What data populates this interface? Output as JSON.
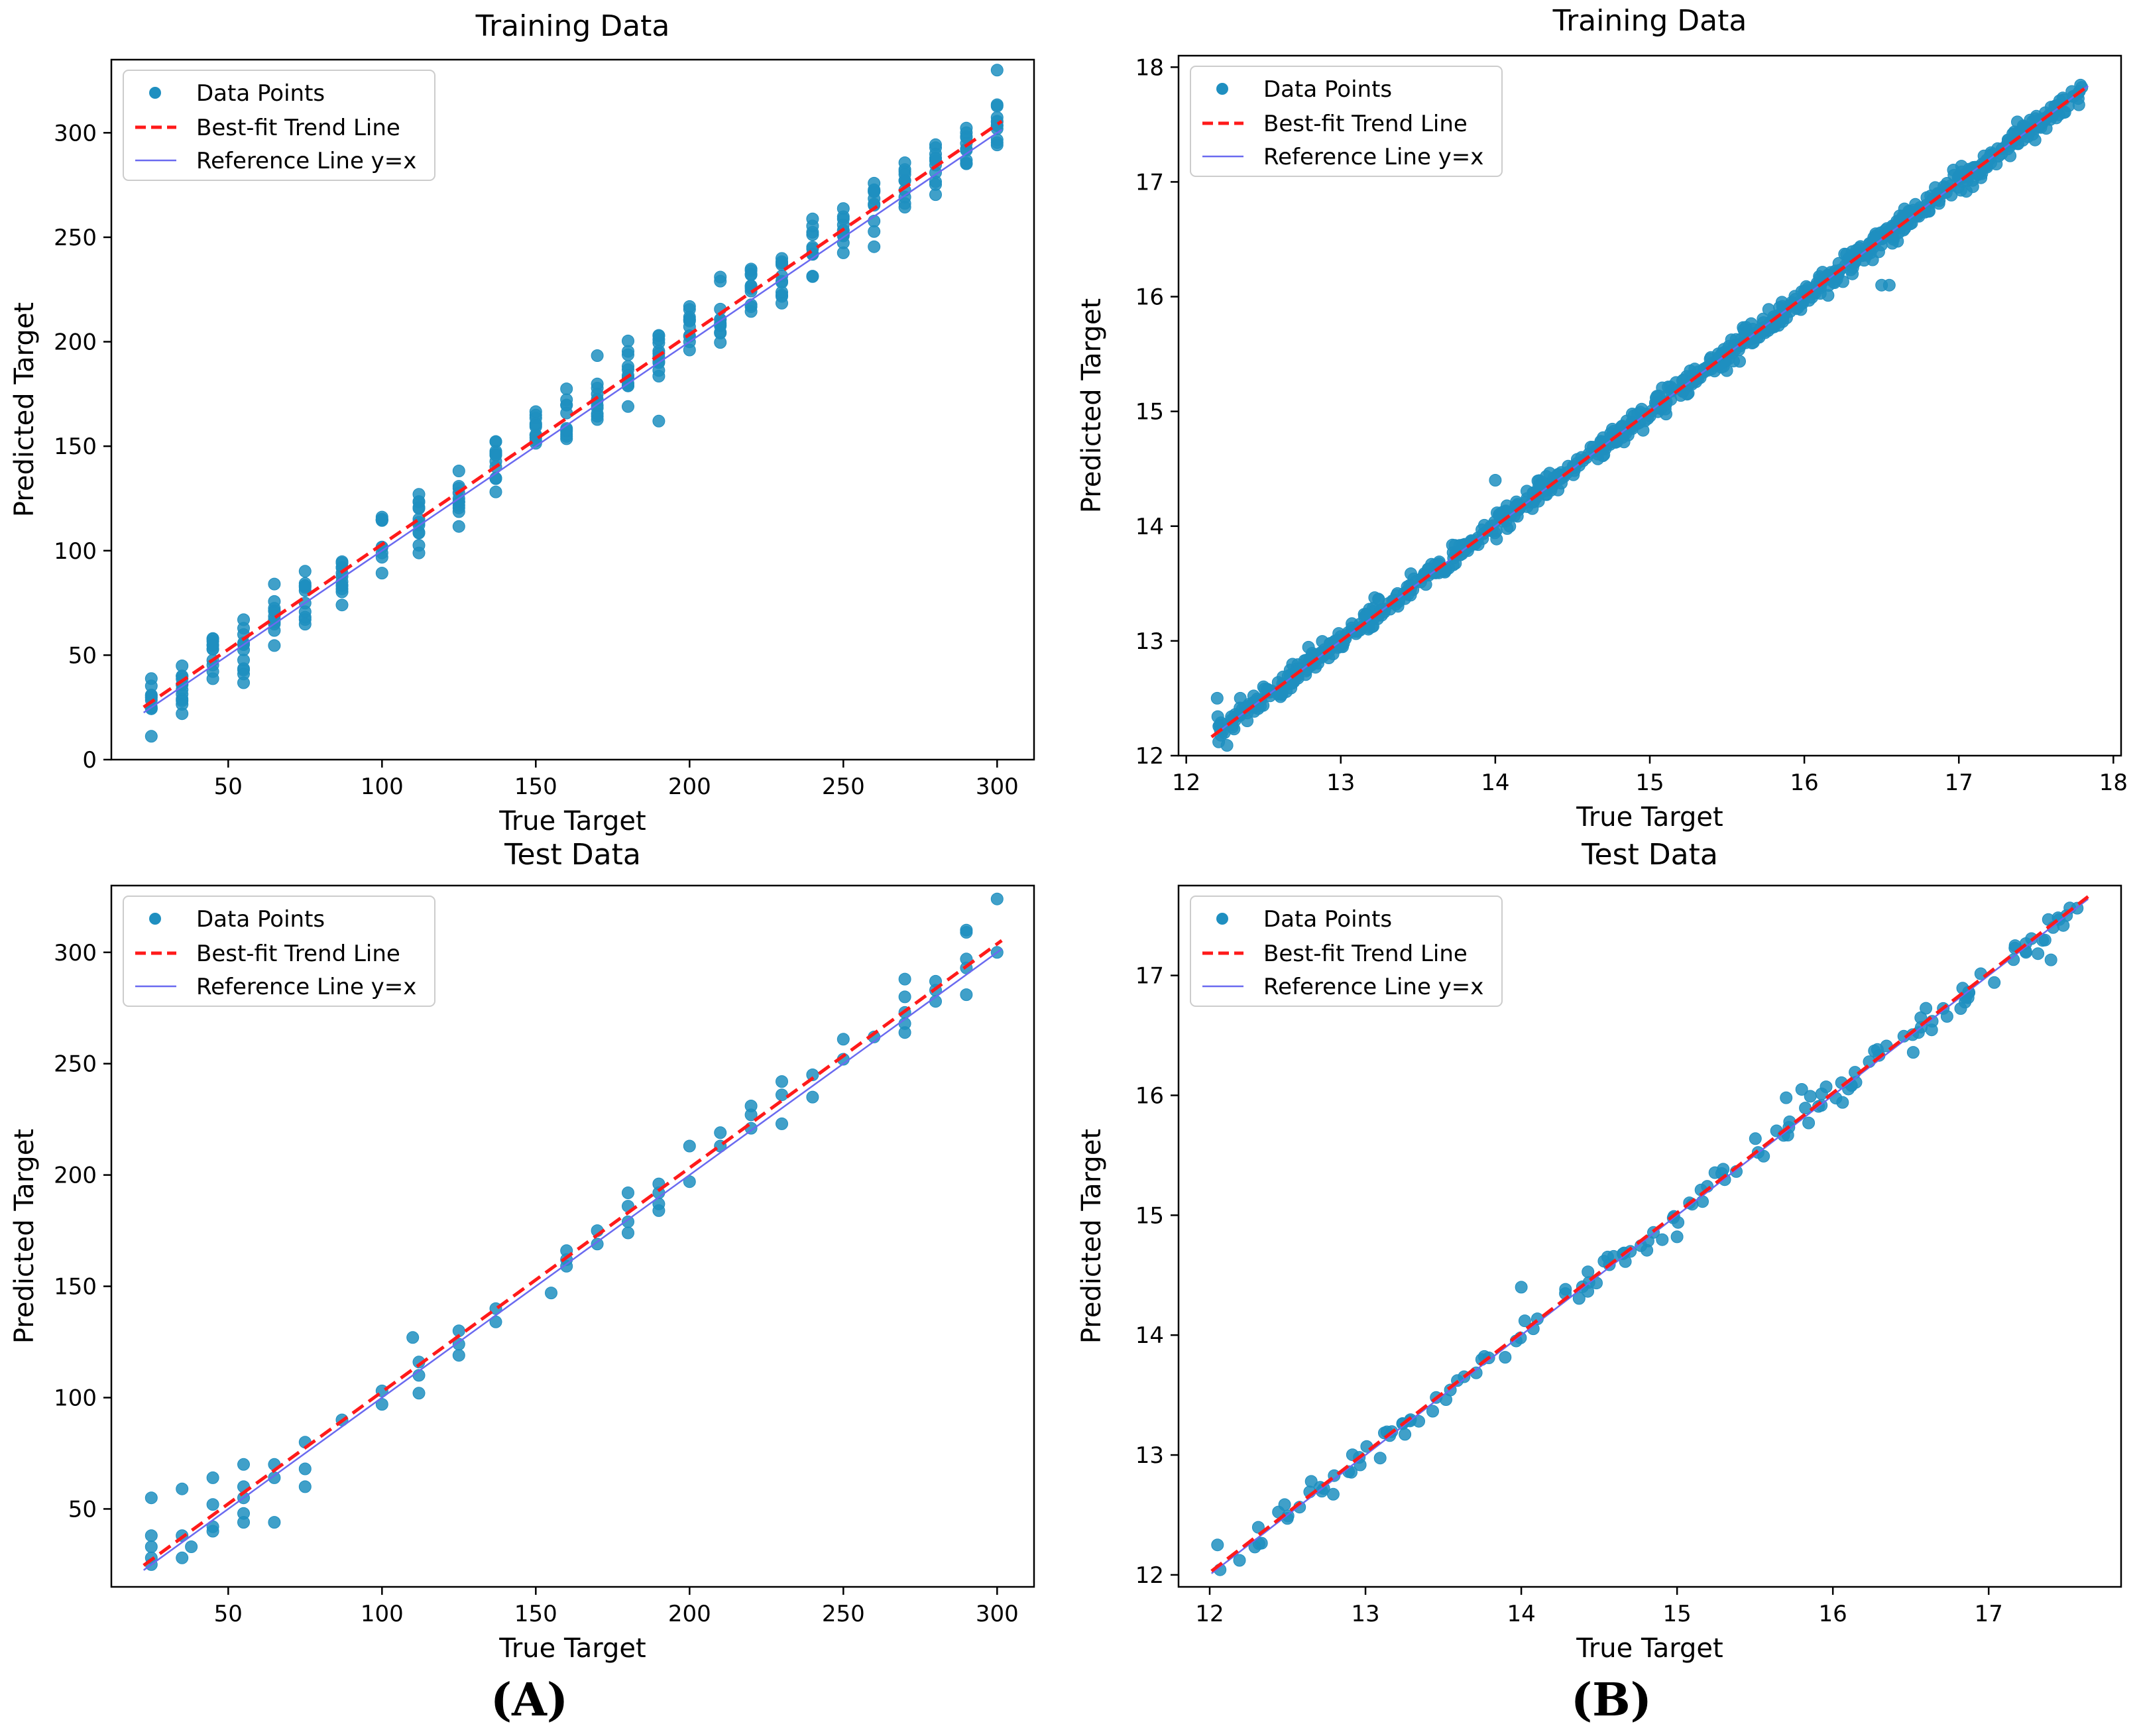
{
  "figure": {
    "panel_labels": [
      "(A)",
      "(B)"
    ]
  },
  "colors": {
    "points": "#1f8fc0",
    "trend": "#ff1a1a",
    "reference": "#6a6af0",
    "axis": "#000000",
    "legend_border": "#cccccc"
  },
  "chart_data": [
    {
      "type": "scatter",
      "id": "A-train",
      "title": "Training Data",
      "xlabel": "True Target",
      "ylabel": "Predicted Target",
      "xlim": [
        12,
        312
      ],
      "ylim": [
        0,
        335
      ],
      "xticks": [
        50,
        100,
        150,
        200,
        250,
        300
      ],
      "yticks": [
        0,
        50,
        100,
        150,
        200,
        250,
        300
      ],
      "tick_decimals": 0,
      "legend": [
        "Data Points",
        "Best-fit Trend Line",
        "Reference Line y=x"
      ],
      "legend_position": "top-left",
      "trend_line": {
        "slope": 1.005,
        "intercept": 2.5
      },
      "reference_line": {
        "slope": 1,
        "intercept": 0
      },
      "x_levels": [
        25,
        35,
        45,
        55,
        65,
        75,
        87,
        100,
        112,
        125,
        137,
        150,
        160,
        170,
        180,
        190,
        200,
        210,
        220,
        230,
        240,
        250,
        260,
        270,
        280,
        290,
        300
      ],
      "noise": 8,
      "points_per_level": 11,
      "outliers": [
        [
          190,
          162
        ],
        [
          112,
          127
        ],
        [
          300,
          330
        ],
        [
          35,
          22
        ],
        [
          55,
          41
        ],
        [
          87,
          92
        ],
        [
          180,
          169
        ]
      ]
    },
    {
      "type": "scatter",
      "id": "B-train",
      "title": "Training Data",
      "xlabel": "True Target",
      "ylabel": "Predicted Target",
      "xlim": [
        11.95,
        18.05
      ],
      "ylim": [
        12.0,
        18.1
      ],
      "xticks": [
        12,
        13,
        14,
        15,
        16,
        17,
        18
      ],
      "yticks": [
        12,
        13,
        14,
        15,
        16,
        17,
        18
      ],
      "tick_decimals": 0,
      "legend": [
        "Data Points",
        "Best-fit Trend Line",
        "Reference Line y=x"
      ],
      "legend_position": "top-left",
      "trend_line": {
        "slope": 1.0,
        "intercept": 0.0
      },
      "reference_line": {
        "slope": 1,
        "intercept": 0
      },
      "x_range": [
        12.2,
        17.8
      ],
      "n_points": 900,
      "noise": 0.05,
      "outliers": [
        [
          14.0,
          14.4
        ],
        [
          12.2,
          12.5
        ],
        [
          16.5,
          16.1
        ],
        [
          16.55,
          16.1
        ],
        [
          12.5,
          12.6
        ],
        [
          12.35,
          12.5
        ]
      ]
    },
    {
      "type": "scatter",
      "id": "A-test",
      "title": "Test Data",
      "xlabel": "True Target",
      "ylabel": "Predicted Target",
      "xlim": [
        12,
        312
      ],
      "ylim": [
        15,
        330
      ],
      "xticks": [
        50,
        100,
        150,
        200,
        250,
        300
      ],
      "yticks": [
        50,
        100,
        150,
        200,
        250,
        300
      ],
      "tick_decimals": 0,
      "legend": [
        "Data Points",
        "Best-fit Trend Line",
        "Reference Line y=x"
      ],
      "legend_position": "top-left",
      "trend_line": {
        "slope": 1.006,
        "intercept": 2.0
      },
      "reference_line": {
        "slope": 1,
        "intercept": 0
      },
      "points": [
        [
          25,
          55
        ],
        [
          25,
          38
        ],
        [
          25,
          33
        ],
        [
          25,
          28
        ],
        [
          25,
          25
        ],
        [
          35,
          59
        ],
        [
          35,
          38
        ],
        [
          35,
          28
        ],
        [
          38,
          33
        ],
        [
          45,
          64
        ],
        [
          45,
          52
        ],
        [
          45,
          42
        ],
        [
          45,
          40
        ],
        [
          55,
          70
        ],
        [
          55,
          60
        ],
        [
          55,
          55
        ],
        [
          55,
          48
        ],
        [
          55,
          44
        ],
        [
          65,
          70
        ],
        [
          65,
          64
        ],
        [
          65,
          44
        ],
        [
          75,
          80
        ],
        [
          75,
          68
        ],
        [
          75,
          60
        ],
        [
          87,
          90
        ],
        [
          100,
          103
        ],
        [
          100,
          97
        ],
        [
          110,
          127
        ],
        [
          112,
          116
        ],
        [
          112,
          110
        ],
        [
          112,
          102
        ],
        [
          125,
          130
        ],
        [
          125,
          124
        ],
        [
          125,
          119
        ],
        [
          137,
          140
        ],
        [
          137,
          134
        ],
        [
          155,
          147
        ],
        [
          160,
          166
        ],
        [
          160,
          162
        ],
        [
          160,
          159
        ],
        [
          170,
          175
        ],
        [
          170,
          169
        ],
        [
          180,
          192
        ],
        [
          180,
          186
        ],
        [
          180,
          179
        ],
        [
          180,
          174
        ],
        [
          190,
          196
        ],
        [
          190,
          192
        ],
        [
          190,
          187
        ],
        [
          190,
          184
        ],
        [
          200,
          213
        ],
        [
          200,
          197
        ],
        [
          210,
          219
        ],
        [
          210,
          213
        ],
        [
          220,
          231
        ],
        [
          220,
          227
        ],
        [
          220,
          221
        ],
        [
          230,
          242
        ],
        [
          230,
          236
        ],
        [
          230,
          223
        ],
        [
          240,
          245
        ],
        [
          240,
          235
        ],
        [
          250,
          261
        ],
        [
          250,
          252
        ],
        [
          260,
          262
        ],
        [
          270,
          288
        ],
        [
          270,
          280
        ],
        [
          270,
          273
        ],
        [
          270,
          268
        ],
        [
          270,
          264
        ],
        [
          280,
          287
        ],
        [
          280,
          283
        ],
        [
          280,
          278
        ],
        [
          290,
          310
        ],
        [
          290,
          309
        ],
        [
          290,
          297
        ],
        [
          290,
          293
        ],
        [
          290,
          281
        ],
        [
          300,
          324
        ],
        [
          300,
          300
        ]
      ]
    },
    {
      "type": "scatter",
      "id": "B-test",
      "title": "Test Data",
      "xlabel": "True Target",
      "ylabel": "Predicted Target",
      "xlim": [
        11.8,
        17.85
      ],
      "ylim": [
        11.9,
        17.75
      ],
      "xticks": [
        12,
        13,
        14,
        15,
        16,
        17
      ],
      "yticks": [
        12,
        13,
        14,
        15,
        16,
        17
      ],
      "tick_decimals": 0,
      "legend": [
        "Data Points",
        "Best-fit Trend Line",
        "Reference Line y=x"
      ],
      "legend_position": "top-left",
      "trend_line": {
        "slope": 1.0,
        "intercept": 0.02
      },
      "reference_line": {
        "slope": 1,
        "intercept": 0
      },
      "x_range": [
        12.05,
        17.6
      ],
      "n_points": 150,
      "noise": 0.06,
      "outliers": [
        [
          12.05,
          12.25
        ],
        [
          14.0,
          14.4
        ],
        [
          15.7,
          15.98
        ],
        [
          15.0,
          14.82
        ],
        [
          15.8,
          16.05
        ],
        [
          17.4,
          17.13
        ],
        [
          17.5,
          17.5
        ]
      ]
    }
  ]
}
